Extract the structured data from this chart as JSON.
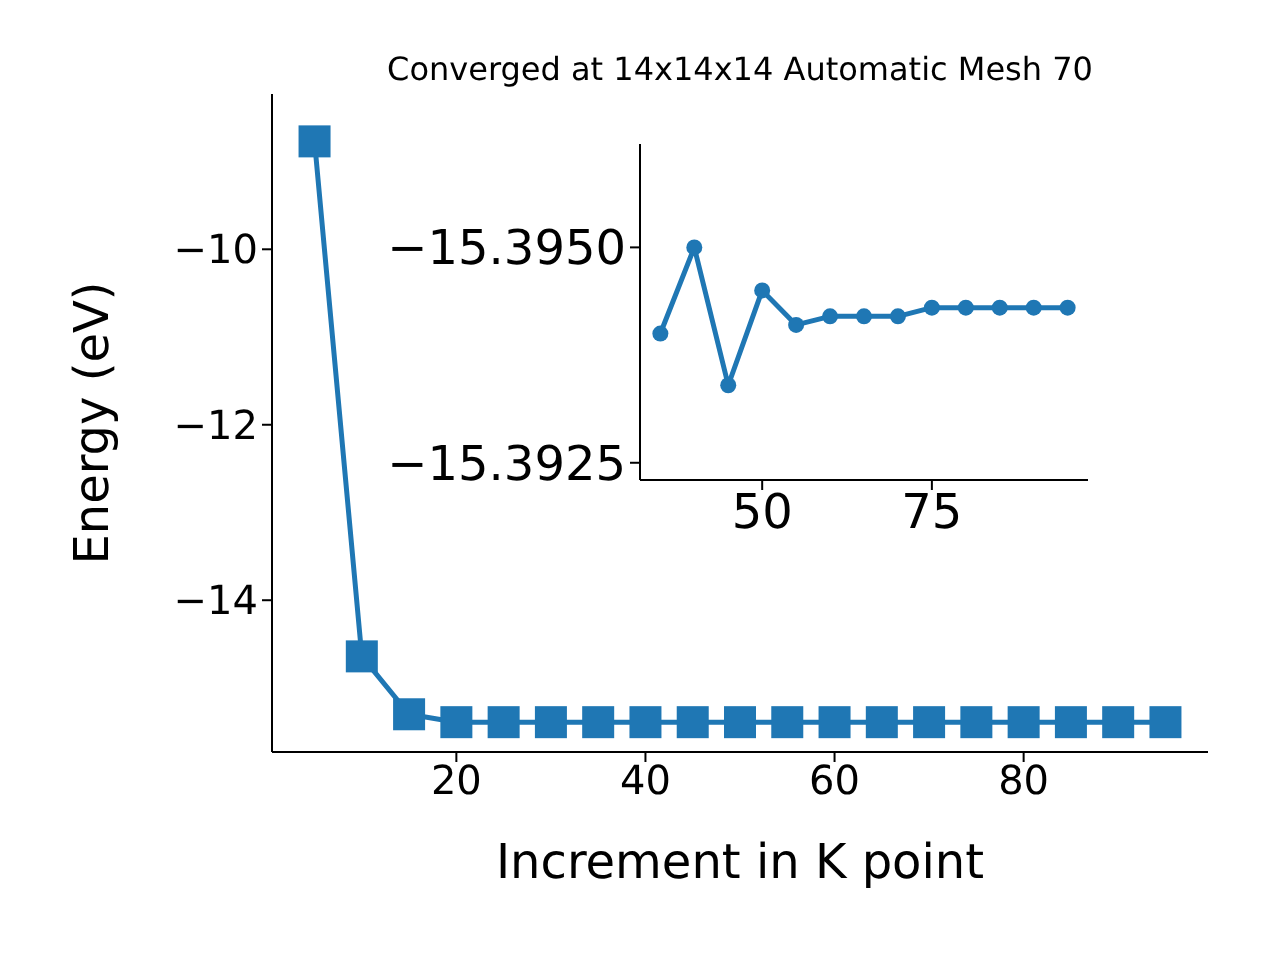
{
  "chart_data": [
    {
      "type": "line",
      "title": "Converged at 14x14x14 Automatic Mesh 70",
      "xlabel": "Increment in K point",
      "ylabel": "Energy (eV)",
      "x": [
        5,
        10,
        15,
        20,
        25,
        30,
        35,
        40,
        45,
        50,
        55,
        60,
        65,
        70,
        75,
        80,
        85,
        90,
        95
      ],
      "series": [
        {
          "color": "#1f77b4",
          "values": [
            -8.77,
            -14.64,
            -15.3,
            -15.39,
            -15.39,
            -15.39,
            -15.39,
            -15.39,
            -15.39,
            -15.39,
            -15.39,
            -15.39,
            -15.39,
            -15.39,
            -15.39,
            -15.39,
            -15.39,
            -15.39,
            -15.39
          ]
        }
      ],
      "xlim": [
        0.5,
        99.5
      ],
      "ylim": [
        -15.73,
        -8.23
      ],
      "xticks": [
        20,
        40,
        60,
        80
      ],
      "yticks": [
        -10,
        -12,
        -14
      ],
      "marker": "square",
      "grid": false,
      "legend": false
    },
    {
      "type": "line",
      "x": [
        35,
        40,
        45,
        50,
        55,
        60,
        65,
        70,
        75,
        80,
        85,
        90,
        95
      ],
      "series": [
        {
          "color": "#1f77b4",
          "values": [
            -15.394,
            -15.395,
            -15.3934,
            -15.3945,
            -15.3941,
            -15.3942,
            -15.3942,
            -15.3942,
            -15.3943,
            -15.3943,
            -15.3943,
            -15.3943,
            -15.3943
          ]
        }
      ],
      "xlim": [
        32,
        98
      ],
      "ylim": [
        -15.3923,
        -15.3962
      ],
      "xticks": [
        50,
        75
      ],
      "yticks": [
        {
          "value": -15.395,
          "label": "−15.3950"
        },
        {
          "value": -15.3925,
          "label": "−15.3925"
        }
      ],
      "marker": "circle",
      "grid": false,
      "legend": false
    }
  ]
}
